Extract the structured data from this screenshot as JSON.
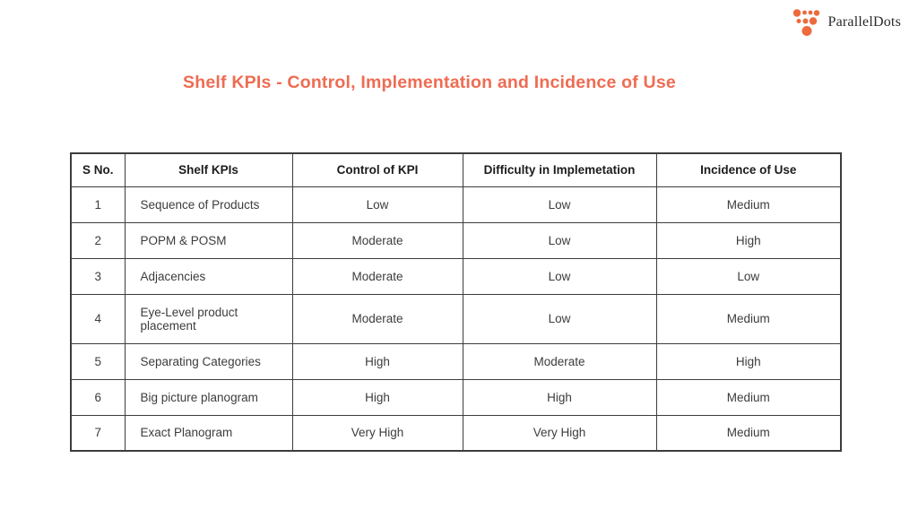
{
  "logo": {
    "text": "ParallelDots",
    "dot_color": "#ed6a3c",
    "text_color": "#2a2a2a"
  },
  "title": {
    "text": "Shelf KPIs - Control, Implementation and Incidence of Use",
    "color": "#ee6c52"
  },
  "table": {
    "border_color": "#3d3d3d",
    "headers": [
      "S No.",
      "Shelf KPIs",
      "Control of KPI",
      "Difficulty in Implemetation",
      "Incidence of Use"
    ],
    "rows": [
      [
        "1",
        "Sequence of Products",
        "Low",
        "Low",
        "Medium"
      ],
      [
        "2",
        "POPM & POSM",
        "Moderate",
        "Low",
        "High"
      ],
      [
        "3",
        "Adjacencies",
        "Moderate",
        "Low",
        "Low"
      ],
      [
        "4",
        "Eye-Level product placement",
        "Moderate",
        "Low",
        "Medium"
      ],
      [
        "5",
        "Separating Categories",
        "High",
        "Moderate",
        "High"
      ],
      [
        "6",
        "Big picture planogram",
        "High",
        "High",
        "Medium"
      ],
      [
        "7",
        "Exact Planogram",
        "Very High",
        "Very High",
        "Medium"
      ]
    ],
    "tall_row_index": 3
  }
}
